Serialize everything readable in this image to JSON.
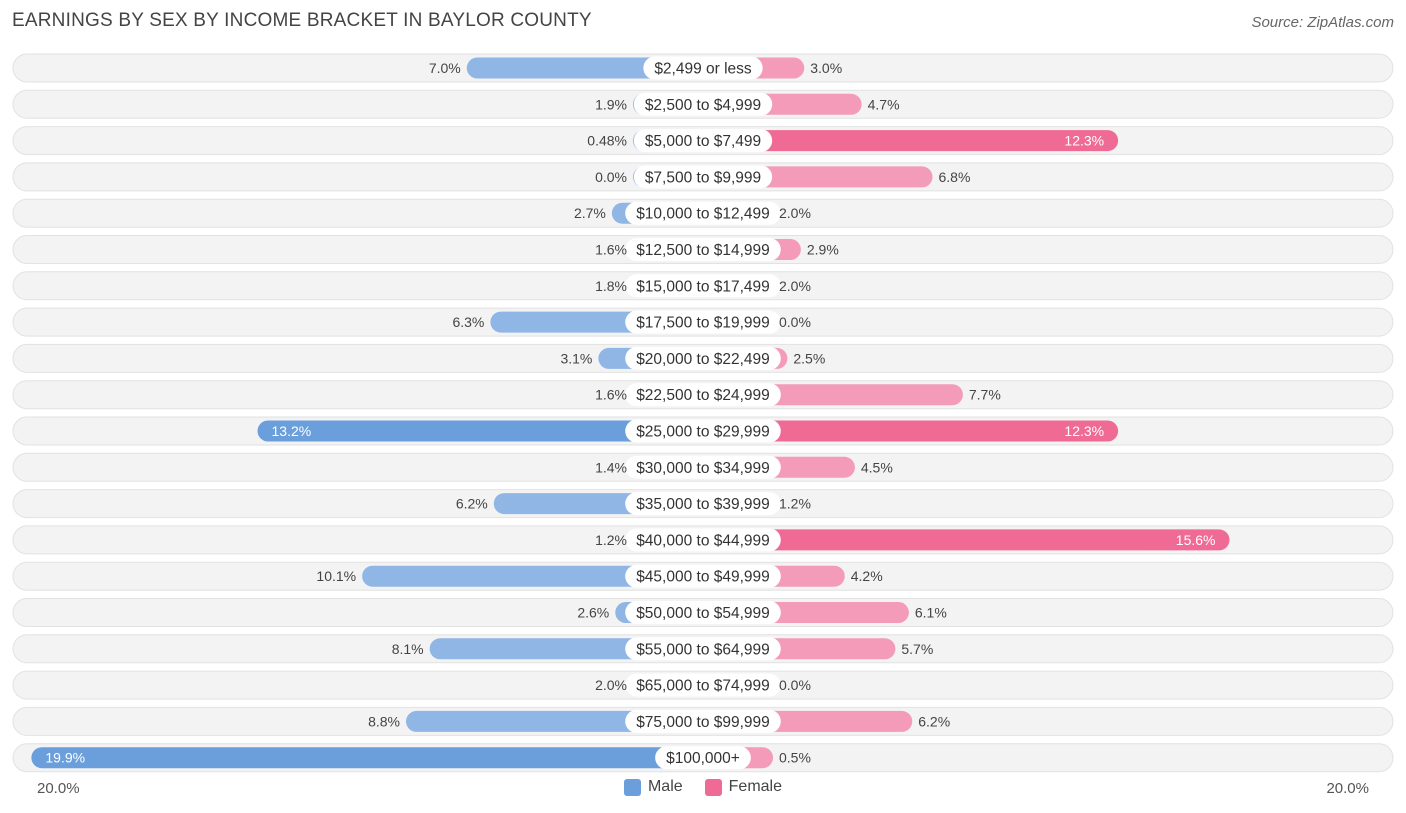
{
  "title": "EARNINGS BY SEX BY INCOME BRACKET IN BAYLOR COUNTY",
  "source": "Source: ZipAtlas.com",
  "colors": {
    "male": "#8fb6e4",
    "male_strong": "#6a9fdc",
    "female": "#f39bb8",
    "female_strong": "#f06a96",
    "row_bg": "#f2f2f2"
  },
  "chart_data": {
    "type": "bar",
    "orientation": "horizontal-diverging",
    "title": "EARNINGS BY SEX BY INCOME BRACKET IN BAYLOR COUNTY",
    "xlim": [
      -20.0,
      20.0
    ],
    "axis_labels": {
      "left": "20.0%",
      "right": "20.0%"
    },
    "legend": [
      {
        "name": "Male",
        "key": "male"
      },
      {
        "name": "Female",
        "key": "female"
      }
    ],
    "categories": [
      "$2,499 or less",
      "$2,500 to $4,999",
      "$5,000 to $7,499",
      "$7,500 to $9,999",
      "$10,000 to $12,499",
      "$12,500 to $14,999",
      "$15,000 to $17,499",
      "$17,500 to $19,999",
      "$20,000 to $22,499",
      "$22,500 to $24,999",
      "$25,000 to $29,999",
      "$30,000 to $34,999",
      "$35,000 to $39,999",
      "$40,000 to $44,999",
      "$45,000 to $49,999",
      "$50,000 to $54,999",
      "$55,000 to $64,999",
      "$65,000 to $74,999",
      "$75,000 to $99,999",
      "$100,000+"
    ],
    "series": [
      {
        "name": "Male",
        "values": [
          7.0,
          1.9,
          0.48,
          0.0,
          2.7,
          1.6,
          1.8,
          6.3,
          3.1,
          1.6,
          13.2,
          1.4,
          6.2,
          1.2,
          10.1,
          2.6,
          8.1,
          2.0,
          8.8,
          19.9
        ],
        "labels": [
          "7.0%",
          "1.9%",
          "0.48%",
          "0.0%",
          "2.7%",
          "1.6%",
          "1.8%",
          "6.3%",
          "3.1%",
          "1.6%",
          "13.2%",
          "1.4%",
          "6.2%",
          "1.2%",
          "10.1%",
          "2.6%",
          "8.1%",
          "2.0%",
          "8.8%",
          "19.9%"
        ]
      },
      {
        "name": "Female",
        "values": [
          3.0,
          4.7,
          12.3,
          6.8,
          2.0,
          2.9,
          2.0,
          0.0,
          2.5,
          7.7,
          12.3,
          4.5,
          1.2,
          15.6,
          4.2,
          6.1,
          5.7,
          0.0,
          6.2,
          0.5
        ],
        "labels": [
          "3.0%",
          "4.7%",
          "12.3%",
          "6.8%",
          "2.0%",
          "2.9%",
          "2.0%",
          "0.0%",
          "2.5%",
          "7.7%",
          "12.3%",
          "4.5%",
          "1.2%",
          "15.6%",
          "4.2%",
          "6.1%",
          "5.7%",
          "0.0%",
          "6.2%",
          "0.5%"
        ]
      }
    ]
  }
}
